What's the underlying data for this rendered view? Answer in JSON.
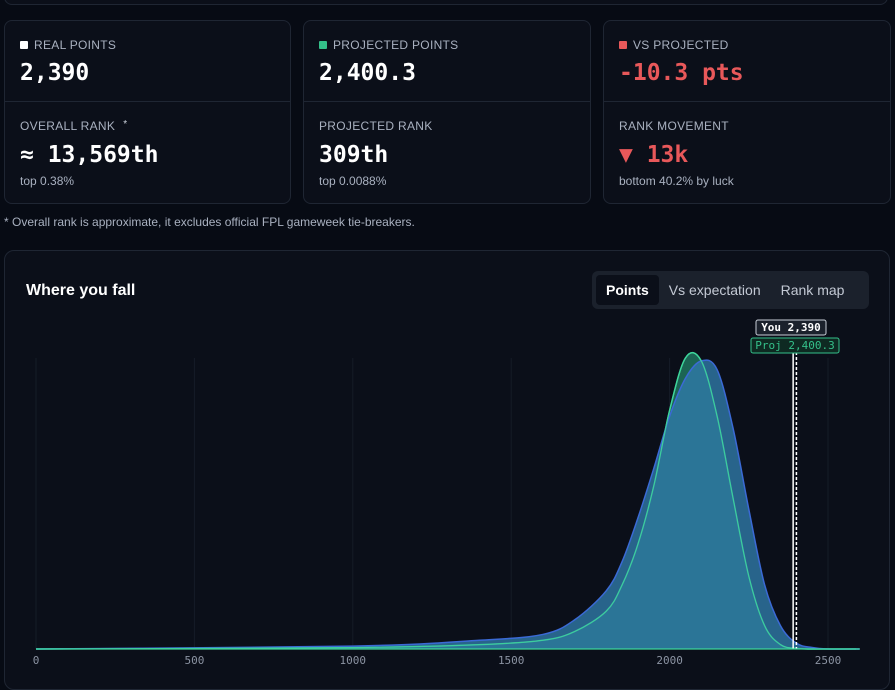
{
  "colors": {
    "real": "#ffffff",
    "projected": "#34c08a",
    "vs": "#e8585a",
    "real_fill": "#2f79a8",
    "real_stroke": "#3b6ad6",
    "proj_fill": "#1e6a57",
    "proj_stroke": "#3ed59b"
  },
  "cards": [
    {
      "top_label": "REAL POINTS",
      "top_value": "2,390",
      "bottom_label": "OVERALL RANK",
      "bottom_star": "*",
      "bottom_value": "≈ 13,569th",
      "bottom_sub": "top 0.38%"
    },
    {
      "top_label": "PROJECTED POINTS",
      "top_value": "2,400.3",
      "bottom_label": "PROJECTED RANK",
      "bottom_value": "309th",
      "bottom_sub": "top 0.0088%"
    },
    {
      "top_label": "VS PROJECTED",
      "top_value": "-10.3 pts",
      "bottom_label": "RANK MOVEMENT",
      "bottom_value": "▼ 13k",
      "bottom_sub": "bottom 40.2% by luck"
    }
  ],
  "footnote": "* Overall rank is approximate, it excludes official FPL gameweek tie-breakers.",
  "panel": {
    "title": "Where you fall",
    "tabs": [
      "Points",
      "Vs expectation",
      "Rank map"
    ],
    "active_tab": "Points"
  },
  "chart_data": {
    "type": "area",
    "x_ticks": [
      "0",
      "500",
      "1000",
      "1500",
      "2000",
      "2500"
    ],
    "xlim": [
      0,
      2600
    ],
    "grid": true,
    "markers": [
      {
        "label": "You 2,390",
        "value": 2390,
        "style": "solid"
      },
      {
        "label": "Proj 2,400.3",
        "value": 2400.3,
        "style": "dashed"
      }
    ],
    "series": [
      {
        "key": "real",
        "x": [
          0,
          1000,
          1400,
          1600,
          1700,
          1800,
          1850,
          1900,
          1950,
          2000,
          2050,
          2100,
          2150,
          2200,
          2250,
          2300,
          2350,
          2400,
          2450,
          2500
        ],
        "y": [
          0,
          0.01,
          0.03,
          0.05,
          0.1,
          0.2,
          0.3,
          0.45,
          0.62,
          0.8,
          0.93,
          0.99,
          0.96,
          0.76,
          0.48,
          0.22,
          0.08,
          0.02,
          0.005,
          0
        ]
      },
      {
        "key": "projected",
        "x": [
          0,
          1000,
          1400,
          1600,
          1700,
          1800,
          1850,
          1900,
          1950,
          2000,
          2050,
          2100,
          2150,
          2200,
          2250,
          2300,
          2350,
          2400,
          2450,
          2500
        ],
        "y": [
          0,
          0.005,
          0.015,
          0.03,
          0.06,
          0.13,
          0.22,
          0.36,
          0.56,
          0.82,
          1.0,
          0.99,
          0.8,
          0.52,
          0.25,
          0.08,
          0.015,
          0.002,
          0,
          0
        ]
      }
    ]
  }
}
